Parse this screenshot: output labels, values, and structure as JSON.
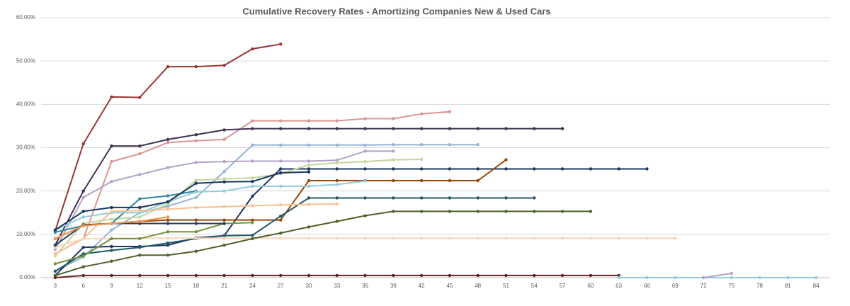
{
  "chart_data": {
    "type": "line",
    "title": "Cumulative Recovery Rates - Amortizing Companies New & Used Cars",
    "categories": [
      3,
      6,
      9,
      12,
      15,
      18,
      21,
      24,
      27,
      30,
      33,
      36,
      39,
      42,
      45,
      48,
      51,
      54,
      57,
      60,
      63,
      66,
      69,
      72,
      75,
      78,
      81,
      84
    ],
    "ylim": [
      0,
      60
    ],
    "yticks": [
      {
        "value": 0,
        "label": "0.00%"
      },
      {
        "value": 10,
        "label": "10.00%"
      },
      {
        "value": 20,
        "label": "20.00%"
      },
      {
        "value": 30,
        "label": "30.00%"
      },
      {
        "value": 40,
        "label": "40.00%"
      },
      {
        "value": 50,
        "label": "50.00%"
      },
      {
        "value": 60,
        "label": "60.00%"
      }
    ],
    "grid": true,
    "series": [
      {
        "color": "#953735",
        "values": [
          10.8,
          30.9,
          41.7,
          41.6,
          48.7,
          48.7,
          49.0,
          52.8,
          53.9,
          null,
          null,
          null,
          null,
          null,
          null,
          null,
          null,
          null,
          null,
          null,
          null,
          null,
          null,
          null,
          null,
          null,
          null,
          null
        ]
      },
      {
        "color": "#d99694",
        "values": [
          5.5,
          9.0,
          26.8,
          28.6,
          31.2,
          31.6,
          31.9,
          36.2,
          36.2,
          36.2,
          36.2,
          36.7,
          36.7,
          37.8,
          38.3,
          null,
          null,
          null,
          null,
          null,
          null,
          null,
          null,
          null,
          null,
          null,
          null,
          null
        ]
      },
      {
        "color": "#403152",
        "values": [
          7.5,
          20.0,
          30.4,
          30.4,
          31.9,
          33.0,
          34.1,
          34.4,
          34.4,
          34.4,
          34.4,
          34.4,
          34.4,
          34.4,
          34.4,
          34.4,
          34.4,
          34.4,
          34.4,
          null,
          null,
          null,
          null,
          null,
          null,
          null,
          null,
          null
        ]
      },
      {
        "color": "#95b3d7",
        "values": [
          1.5,
          4.8,
          11.0,
          15.0,
          16.5,
          18.5,
          24.5,
          30.6,
          30.6,
          30.6,
          30.6,
          30.6,
          30.7,
          30.7,
          30.7,
          30.7,
          null,
          null,
          null,
          null,
          null,
          null,
          null,
          null,
          null,
          null,
          null,
          null
        ]
      },
      {
        "color": "#b3a2c7",
        "values": [
          6.5,
          18.5,
          22.2,
          23.8,
          25.4,
          26.6,
          26.8,
          26.9,
          26.9,
          26.9,
          27.1,
          29.2,
          29.2,
          null,
          null,
          null,
          null,
          null,
          null,
          null,
          null,
          null,
          null,
          null,
          null,
          null,
          null,
          null
        ]
      },
      {
        "color": "#1f3864",
        "values": [
          0.5,
          7.0,
          7.2,
          7.2,
          7.5,
          9.2,
          9.7,
          18.8,
          25.1,
          25.1,
          25.1,
          25.1,
          25.1,
          25.1,
          25.1,
          25.1,
          25.1,
          25.1,
          25.1,
          25.1,
          25.1,
          25.1,
          null,
          null,
          null,
          null,
          null,
          null
        ]
      },
      {
        "color": "#c3d69b",
        "values": [
          5.0,
          12.5,
          13.5,
          14.0,
          17.0,
          22.5,
          22.8,
          23.0,
          24.0,
          26.0,
          26.5,
          26.8,
          27.2,
          27.3,
          null,
          null,
          null,
          null,
          null,
          null,
          null,
          null,
          null,
          null,
          null,
          null,
          null,
          null
        ]
      },
      {
        "color": "#984807",
        "values": [
          9.0,
          12.0,
          12.5,
          13.0,
          13.3,
          13.3,
          13.3,
          13.3,
          13.3,
          22.4,
          22.4,
          22.4,
          22.4,
          22.4,
          22.4,
          22.4,
          27.2,
          null,
          null,
          null,
          null,
          null,
          null,
          null,
          null,
          null,
          null,
          null
        ]
      },
      {
        "color": "#31859c",
        "values": [
          10.5,
          12.0,
          12.5,
          18.2,
          18.9,
          20.0,
          null,
          null,
          null,
          null,
          null,
          null,
          null,
          null,
          null,
          null,
          null,
          null,
          null,
          null,
          null,
          null,
          null,
          null,
          null,
          null,
          null,
          null
        ]
      },
      {
        "color": "#215968",
        "values": [
          1.5,
          5.5,
          6.3,
          7.0,
          8.0,
          9.0,
          9.7,
          9.8,
          14.2,
          18.4,
          18.4,
          18.4,
          18.4,
          18.4,
          18.4,
          18.4,
          18.4,
          18.4,
          null,
          null,
          null,
          null,
          null,
          null,
          null,
          null,
          null,
          null
        ]
      },
      {
        "color": "#92cddc",
        "values": [
          11.0,
          14.0,
          15.0,
          15.0,
          17.5,
          19.8,
          20.0,
          21.1,
          21.1,
          21.1,
          21.5,
          22.3,
          null,
          null,
          null,
          null,
          null,
          null,
          null,
          null,
          null,
          null,
          null,
          null,
          null,
          null,
          null,
          null
        ]
      },
      {
        "color": "#fac090",
        "values": [
          5.5,
          9.0,
          15.3,
          15.5,
          15.8,
          16.2,
          16.4,
          16.6,
          16.8,
          16.9,
          17.0,
          null,
          null,
          null,
          null,
          null,
          null,
          null,
          null,
          null,
          null,
          null,
          null,
          null,
          null,
          null,
          null,
          null
        ]
      },
      {
        "color": "#fcd5b4",
        "values": [
          7.0,
          9.0,
          9.0,
          9.1,
          9.1,
          9.1,
          9.1,
          9.1,
          9.1,
          9.1,
          9.1,
          9.1,
          9.1,
          9.1,
          9.1,
          9.1,
          9.1,
          9.1,
          9.1,
          9.1,
          9.1,
          9.1,
          9.1,
          null,
          null,
          null,
          null,
          null
        ]
      },
      {
        "color": "#4f6228",
        "values": [
          0.5,
          2.5,
          3.8,
          5.2,
          5.2,
          6.1,
          7.5,
          9.0,
          10.3,
          11.7,
          13.0,
          14.3,
          15.3,
          15.3,
          15.3,
          15.3,
          15.3,
          15.3,
          15.3,
          15.3,
          null,
          null,
          null,
          null,
          null,
          null,
          null,
          null
        ]
      },
      {
        "color": "#77933c",
        "values": [
          3.2,
          5.0,
          9.0,
          9.0,
          10.6,
          10.6,
          12.5,
          12.7,
          null,
          null,
          null,
          null,
          null,
          null,
          null,
          null,
          null,
          null,
          null,
          null,
          null,
          null,
          null,
          null,
          null,
          null,
          null,
          null
        ]
      },
      {
        "color": "#632523",
        "values": [
          0.0,
          0.5,
          0.5,
          0.5,
          0.5,
          0.5,
          0.5,
          0.5,
          0.5,
          0.5,
          0.5,
          0.5,
          0.5,
          0.5,
          0.5,
          0.5,
          0.5,
          0.5,
          0.5,
          0.5,
          0.5,
          null,
          null,
          null,
          null,
          null,
          null,
          null
        ]
      },
      {
        "color": "#17375e",
        "values": [
          11.0,
          15.3,
          16.2,
          16.2,
          17.5,
          21.8,
          22.1,
          22.2,
          24.2,
          24.4,
          null,
          null,
          null,
          null,
          null,
          null,
          null,
          null,
          null,
          null,
          null,
          null,
          null,
          null,
          null,
          null,
          null,
          null
        ]
      },
      {
        "color": "#254061",
        "values": [
          7.5,
          12.2,
          12.5,
          12.5,
          12.5,
          12.5,
          12.5,
          null,
          null,
          null,
          null,
          null,
          null,
          null,
          null,
          null,
          null,
          null,
          null,
          null,
          null,
          null,
          null,
          null,
          null,
          null,
          null,
          null
        ]
      },
      {
        "color": "#f79646",
        "values": [
          9.0,
          12.0,
          12.5,
          13.0,
          14.0,
          null,
          null,
          null,
          null,
          null,
          null,
          null,
          null,
          null,
          null,
          null,
          null,
          null,
          null,
          null,
          null,
          null,
          null,
          null,
          null,
          null,
          null,
          null
        ]
      },
      {
        "color": "#93cddd",
        "values": [
          null,
          null,
          null,
          null,
          null,
          null,
          null,
          null,
          null,
          null,
          null,
          null,
          null,
          null,
          null,
          null,
          null,
          null,
          null,
          null,
          0.0,
          0.0,
          0.0,
          0.0,
          0.0,
          0.0,
          0.0,
          0.0
        ]
      },
      {
        "color": "#b3a2c7",
        "values": [
          null,
          null,
          null,
          null,
          null,
          null,
          null,
          null,
          null,
          null,
          null,
          null,
          null,
          null,
          null,
          null,
          null,
          null,
          null,
          null,
          null,
          null,
          null,
          0.0,
          1.0,
          null,
          null,
          null
        ]
      }
    ]
  }
}
